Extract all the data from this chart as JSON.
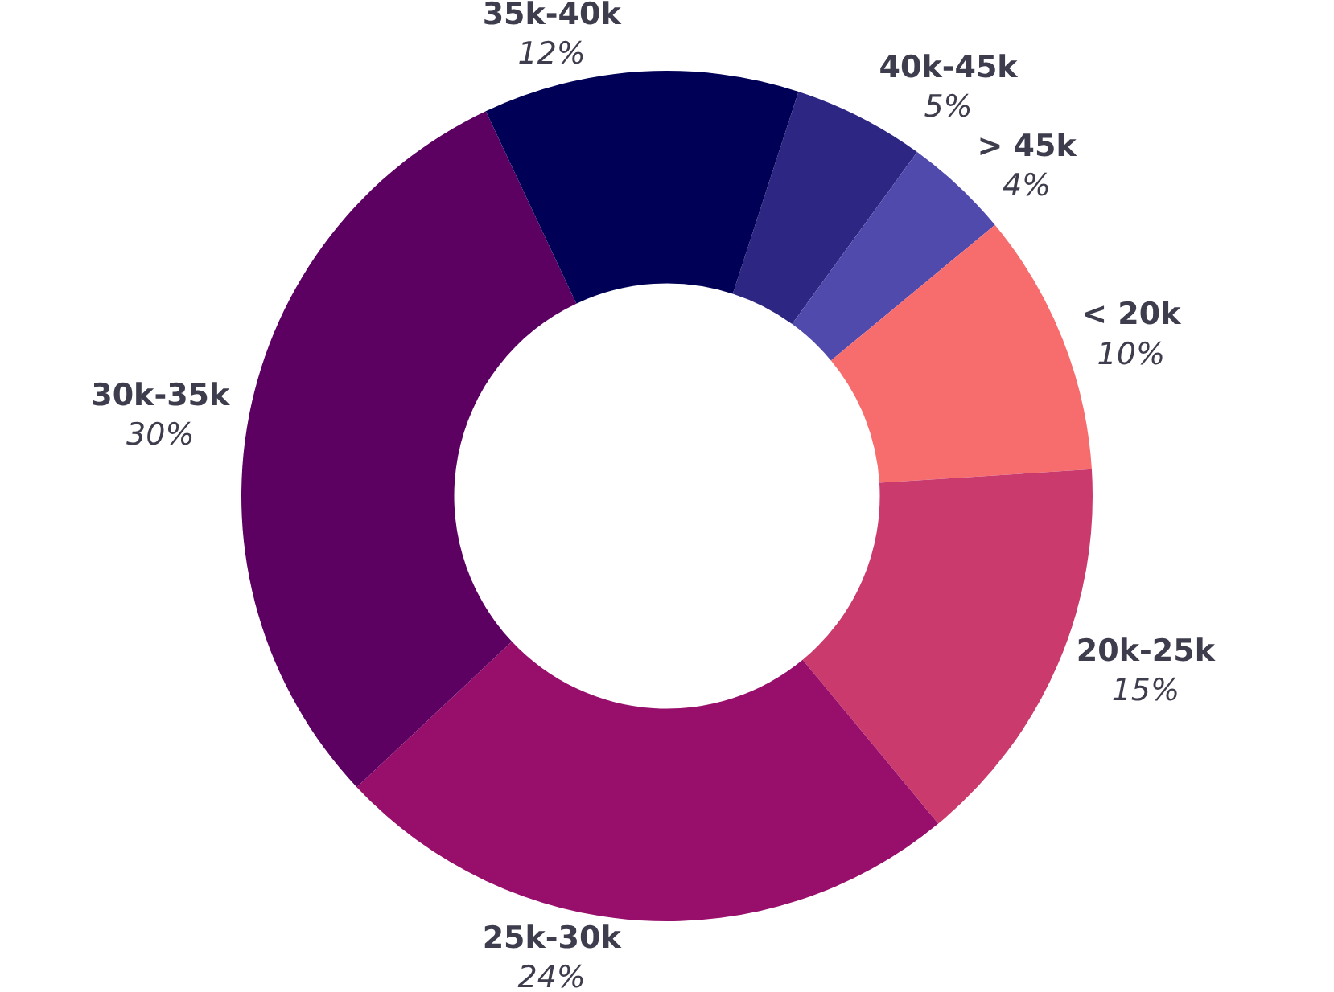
{
  "chart_data": {
    "type": "donut",
    "categories": [
      "40k-45k",
      "> 45k",
      "< 20k",
      "20k-25k",
      "25k-30k",
      "30k-35k",
      "35k-40k"
    ],
    "values": [
      5,
      4,
      10,
      15,
      24,
      30,
      12
    ],
    "value_labels": [
      "5%",
      "4%",
      "10%",
      "15%",
      "24%",
      "30%",
      "12%"
    ],
    "colors": [
      "#2e2683",
      "#514aad",
      "#f76d6d",
      "#cb3a6c",
      "#970f6b",
      "#5c0062",
      "#000056"
    ],
    "legend": false
  }
}
